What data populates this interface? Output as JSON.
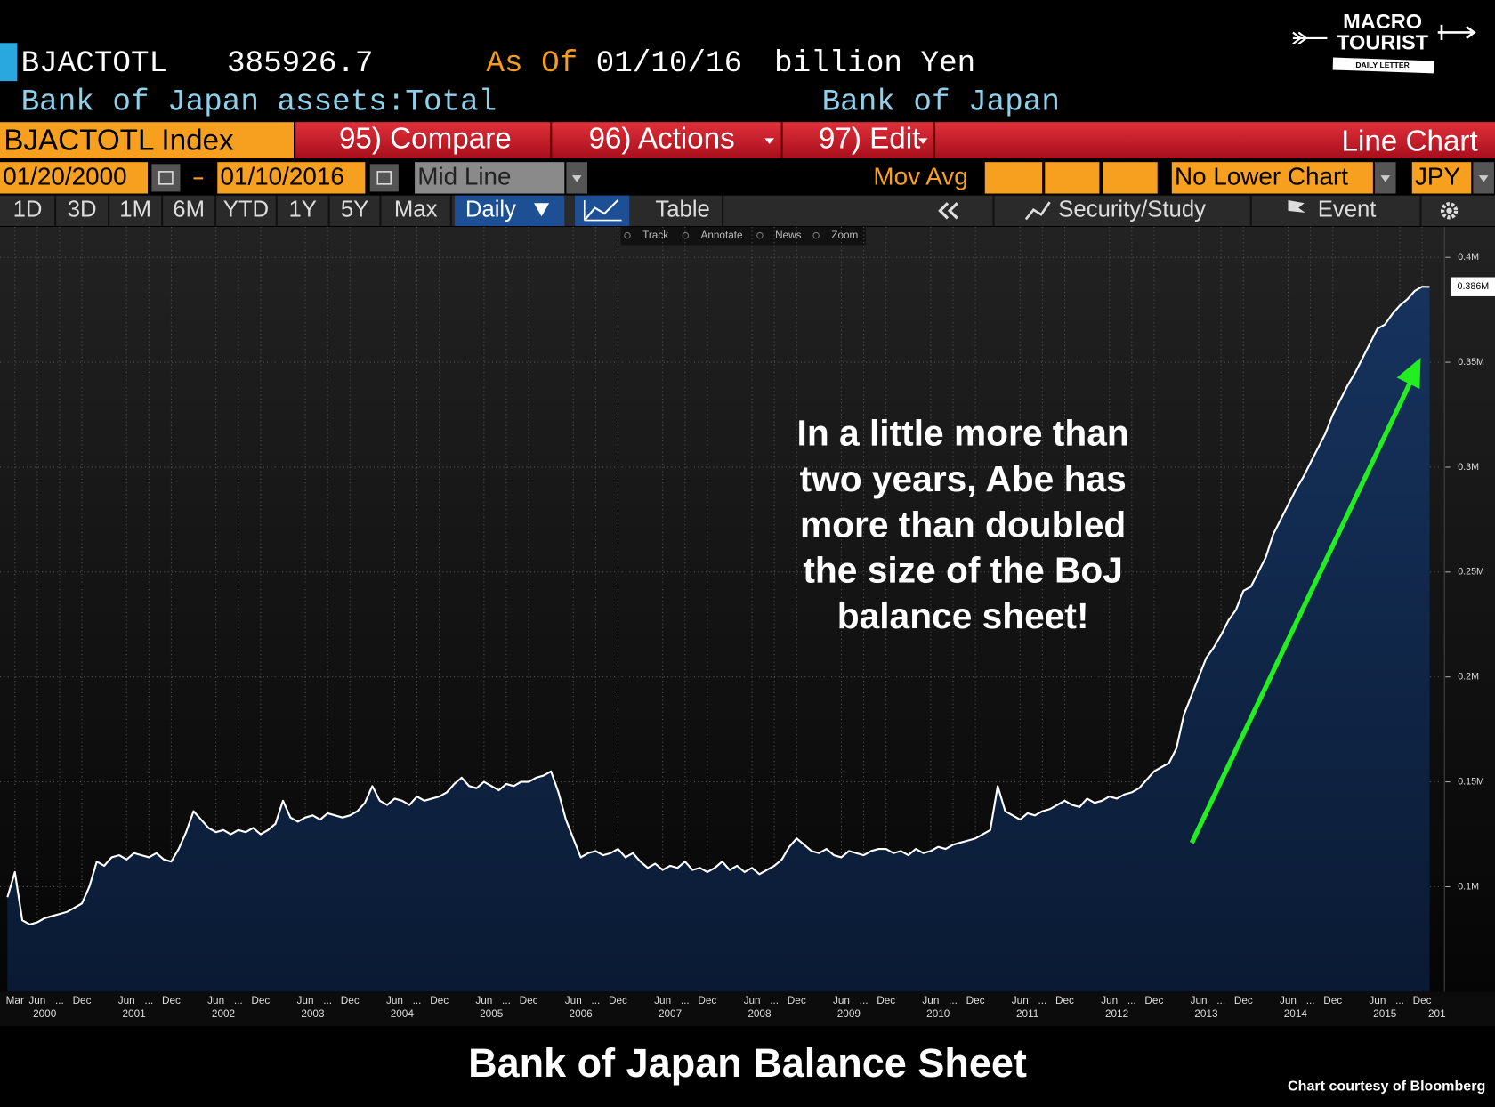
{
  "header": {
    "ticker": "BJACTOTL",
    "last": 385926.7,
    "as_of": "As Of",
    "date": "01/10/16",
    "units": "billion Yen",
    "description": "Bank of Japan assets:Total",
    "source": "Bank of Japan",
    "logo": [
      "MACRO",
      "TOURIST",
      "DAILY LETTER"
    ]
  },
  "toolbar": {
    "security": "BJACTOTL Index",
    "tabs": [
      "95) Compare",
      "96) Actions",
      "97) Edit"
    ],
    "view": "Line Chart",
    "start_date": "01/20/2000",
    "end_date": "01/10/2016",
    "line_mode": "Mid Line",
    "mov_avg": "Mov Avg",
    "lower_chart": "No Lower Chart",
    "currency": "JPY",
    "periods": [
      "1D",
      "3D",
      "1M",
      "6M",
      "YTD",
      "1Y",
      "5Y",
      "Max"
    ],
    "frequency": "Daily",
    "table": "Table",
    "security_study": "Security/Study",
    "event": "Event",
    "tools": [
      "Track",
      "Annotate",
      "News",
      "Zoom"
    ]
  },
  "chart_data": {
    "type": "line",
    "title": "Bank of Japan Balance Sheet",
    "credit": "Chart courtesy of Bloomberg",
    "annotation": [
      "In a little more than",
      "two years, Abe has",
      "more than doubled",
      "the size of the BoJ",
      "balance sheet!"
    ],
    "color": "#ffffff",
    "fill": "#0d2444",
    "grid": true,
    "x": [
      "2000-02",
      "2000-03",
      "2000-04",
      "2000-05",
      "2000-06",
      "2000-07",
      "2000-08",
      "2000-09",
      "2000-10",
      "2000-11",
      "2000-12",
      "2001-01",
      "2001-02",
      "2001-03",
      "2001-04",
      "2001-05",
      "2001-06",
      "2001-07",
      "2001-08",
      "2001-09",
      "2001-10",
      "2001-11",
      "2001-12",
      "2002-01",
      "2002-02",
      "2002-03",
      "2002-04",
      "2002-05",
      "2002-06",
      "2002-07",
      "2002-08",
      "2002-09",
      "2002-10",
      "2002-11",
      "2002-12",
      "2003-01",
      "2003-02",
      "2003-03",
      "2003-04",
      "2003-05",
      "2003-06",
      "2003-07",
      "2003-08",
      "2003-09",
      "2003-10",
      "2003-11",
      "2003-12",
      "2004-01",
      "2004-02",
      "2004-03",
      "2004-04",
      "2004-05",
      "2004-06",
      "2004-07",
      "2004-08",
      "2004-09",
      "2004-10",
      "2004-11",
      "2004-12",
      "2005-01",
      "2005-02",
      "2005-03",
      "2005-04",
      "2005-05",
      "2005-06",
      "2005-07",
      "2005-08",
      "2005-09",
      "2005-10",
      "2005-11",
      "2005-12",
      "2006-01",
      "2006-02",
      "2006-03",
      "2006-04",
      "2006-05",
      "2006-06",
      "2006-07",
      "2006-08",
      "2006-09",
      "2006-10",
      "2006-11",
      "2006-12",
      "2007-01",
      "2007-02",
      "2007-03",
      "2007-04",
      "2007-05",
      "2007-06",
      "2007-07",
      "2007-08",
      "2007-09",
      "2007-10",
      "2007-11",
      "2007-12",
      "2008-01",
      "2008-02",
      "2008-03",
      "2008-04",
      "2008-05",
      "2008-06",
      "2008-07",
      "2008-08",
      "2008-09",
      "2008-10",
      "2008-11",
      "2008-12",
      "2009-01",
      "2009-02",
      "2009-03",
      "2009-04",
      "2009-05",
      "2009-06",
      "2009-07",
      "2009-08",
      "2009-09",
      "2009-10",
      "2009-11",
      "2009-12",
      "2010-01",
      "2010-02",
      "2010-03",
      "2010-04",
      "2010-05",
      "2010-06",
      "2010-07",
      "2010-08",
      "2010-09",
      "2010-10",
      "2010-11",
      "2010-12",
      "2011-01",
      "2011-02",
      "2011-03",
      "2011-04",
      "2011-05",
      "2011-06",
      "2011-07",
      "2011-08",
      "2011-09",
      "2011-10",
      "2011-11",
      "2011-12",
      "2012-01",
      "2012-02",
      "2012-03",
      "2012-04",
      "2012-05",
      "2012-06",
      "2012-07",
      "2012-08",
      "2012-09",
      "2012-10",
      "2012-11",
      "2012-12",
      "2013-01",
      "2013-02",
      "2013-03",
      "2013-04",
      "2013-05",
      "2013-06",
      "2013-07",
      "2013-08",
      "2013-09",
      "2013-10",
      "2013-11",
      "2013-12",
      "2014-01",
      "2014-02",
      "2014-03",
      "2014-04",
      "2014-05",
      "2014-06",
      "2014-07",
      "2014-08",
      "2014-09",
      "2014-10",
      "2014-11",
      "2014-12",
      "2015-01",
      "2015-02",
      "2015-03",
      "2015-04",
      "2015-05",
      "2015-06",
      "2015-07",
      "2015-08",
      "2015-09",
      "2015-10",
      "2015-11",
      "2015-12",
      "2016-01"
    ],
    "values": [
      95000,
      107000,
      84000,
      82000,
      83000,
      85000,
      86000,
      87000,
      88000,
      90000,
      92000,
      100000,
      112000,
      110000,
      114000,
      115000,
      113000,
      116000,
      115000,
      114000,
      116000,
      113000,
      112000,
      118000,
      126000,
      136000,
      132000,
      128000,
      126000,
      127000,
      125000,
      127000,
      126000,
      128000,
      125000,
      127000,
      130000,
      141000,
      133000,
      131000,
      133000,
      134000,
      132000,
      135000,
      134000,
      133000,
      134000,
      136000,
      140000,
      148000,
      141000,
      139000,
      142000,
      141000,
      139000,
      143000,
      141000,
      142000,
      143000,
      145000,
      149000,
      152000,
      148000,
      147000,
      150000,
      148000,
      146000,
      149000,
      148000,
      150000,
      150000,
      152000,
      153000,
      155000,
      145000,
      132000,
      123000,
      114000,
      116000,
      117000,
      115000,
      116000,
      118000,
      114000,
      116000,
      112000,
      109000,
      111000,
      108000,
      110000,
      109000,
      112000,
      108000,
      109000,
      107000,
      109000,
      112000,
      108000,
      110000,
      107000,
      109000,
      106000,
      108000,
      110000,
      113000,
      119000,
      123000,
      120000,
      117000,
      116000,
      118000,
      115000,
      114000,
      117000,
      116000,
      115000,
      117000,
      118000,
      118000,
      116000,
      117000,
      115000,
      118000,
      116000,
      117000,
      119000,
      118000,
      120000,
      121000,
      122000,
      123000,
      125000,
      127000,
      148000,
      136000,
      134000,
      132000,
      135000,
      134000,
      136000,
      137000,
      139000,
      141000,
      139000,
      138000,
      142000,
      140000,
      141000,
      143000,
      142000,
      144000,
      145000,
      147000,
      151000,
      155000,
      157000,
      159000,
      166000,
      182000,
      191000,
      200000,
      209000,
      214000,
      220000,
      227000,
      232000,
      241000,
      243000,
      250000,
      257000,
      268000,
      275000,
      282000,
      289000,
      295000,
      302000,
      309000,
      316000,
      325000,
      332000,
      339000,
      345000,
      352000,
      359000,
      366000,
      368000,
      373000,
      377000,
      380000,
      384000,
      386000,
      385926.7
    ],
    "last_label": {
      "value": 386000,
      "label": "0.386M"
    },
    "xlim": [
      "2000-01",
      "2016-03"
    ],
    "ylim": [
      50000,
      414500
    ],
    "yticks": [
      {
        "value": 100000,
        "label": "0.1M"
      },
      {
        "value": 150000,
        "label": "0.15M"
      },
      {
        "value": 200000,
        "label": "0.2M"
      },
      {
        "value": 250000,
        "label": "0.25M"
      },
      {
        "value": 300000,
        "label": "0.3M"
      },
      {
        "value": 350000,
        "label": "0.35M"
      },
      {
        "value": 400000,
        "label": "0.4M"
      }
    ],
    "xticks": [
      {
        "value": "2000-03",
        "label": "Mar"
      },
      {
        "value": "2000-06",
        "label": "Jun"
      },
      {
        "value": "2000-09",
        "label": "..."
      },
      {
        "value": "2000-12",
        "label": "Dec"
      },
      {
        "value": "2001-06",
        "label": "Jun"
      },
      {
        "value": "2001-09",
        "label": "..."
      },
      {
        "value": "2001-12",
        "label": "Dec"
      },
      {
        "value": "2002-06",
        "label": "Jun"
      },
      {
        "value": "2002-09",
        "label": "..."
      },
      {
        "value": "2002-12",
        "label": "Dec"
      },
      {
        "value": "2003-06",
        "label": "Jun"
      },
      {
        "value": "2003-09",
        "label": "..."
      },
      {
        "value": "2003-12",
        "label": "Dec"
      },
      {
        "value": "2004-06",
        "label": "Jun"
      },
      {
        "value": "2004-09",
        "label": "..."
      },
      {
        "value": "2004-12",
        "label": "Dec"
      },
      {
        "value": "2005-06",
        "label": "Jun"
      },
      {
        "value": "2005-09",
        "label": "..."
      },
      {
        "value": "2005-12",
        "label": "Dec"
      },
      {
        "value": "2006-06",
        "label": "Jun"
      },
      {
        "value": "2006-09",
        "label": "..."
      },
      {
        "value": "2006-12",
        "label": "Dec"
      },
      {
        "value": "2007-06",
        "label": "Jun"
      },
      {
        "value": "2007-09",
        "label": "..."
      },
      {
        "value": "2007-12",
        "label": "Dec"
      },
      {
        "value": "2008-06",
        "label": "Jun"
      },
      {
        "value": "2008-09",
        "label": "..."
      },
      {
        "value": "2008-12",
        "label": "Dec"
      },
      {
        "value": "2009-06",
        "label": "Jun"
      },
      {
        "value": "2009-09",
        "label": "..."
      },
      {
        "value": "2009-12",
        "label": "Dec"
      },
      {
        "value": "2010-06",
        "label": "Jun"
      },
      {
        "value": "2010-09",
        "label": "..."
      },
      {
        "value": "2010-12",
        "label": "Dec"
      },
      {
        "value": "2011-06",
        "label": "Jun"
      },
      {
        "value": "2011-09",
        "label": "..."
      },
      {
        "value": "2011-12",
        "label": "Dec"
      },
      {
        "value": "2012-06",
        "label": "Jun"
      },
      {
        "value": "2012-09",
        "label": "..."
      },
      {
        "value": "2012-12",
        "label": "Dec"
      },
      {
        "value": "2013-06",
        "label": "Jun"
      },
      {
        "value": "2013-09",
        "label": "..."
      },
      {
        "value": "2013-12",
        "label": "Dec"
      },
      {
        "value": "2014-06",
        "label": "Jun"
      },
      {
        "value": "2014-09",
        "label": "..."
      },
      {
        "value": "2014-12",
        "label": "Dec"
      },
      {
        "value": "2015-06",
        "label": "Jun"
      },
      {
        "value": "2015-09",
        "label": "..."
      },
      {
        "value": "2015-12",
        "label": "Dec"
      }
    ],
    "year_labels": [
      {
        "value": "2000-07",
        "label": "2000"
      },
      {
        "value": "2001-07",
        "label": "2001"
      },
      {
        "value": "2002-07",
        "label": "2002"
      },
      {
        "value": "2003-07",
        "label": "2003"
      },
      {
        "value": "2004-07",
        "label": "2004"
      },
      {
        "value": "2005-07",
        "label": "2005"
      },
      {
        "value": "2006-07",
        "label": "2006"
      },
      {
        "value": "2007-07",
        "label": "2007"
      },
      {
        "value": "2008-07",
        "label": "2008"
      },
      {
        "value": "2009-07",
        "label": "2009"
      },
      {
        "value": "2010-07",
        "label": "2010"
      },
      {
        "value": "2011-07",
        "label": "2011"
      },
      {
        "value": "2012-07",
        "label": "2012"
      },
      {
        "value": "2013-07",
        "label": "2013"
      },
      {
        "value": "2014-07",
        "label": "2014"
      },
      {
        "value": "2015-07",
        "label": "2015"
      },
      {
        "value": "2016-02",
        "label": "201"
      }
    ]
  }
}
